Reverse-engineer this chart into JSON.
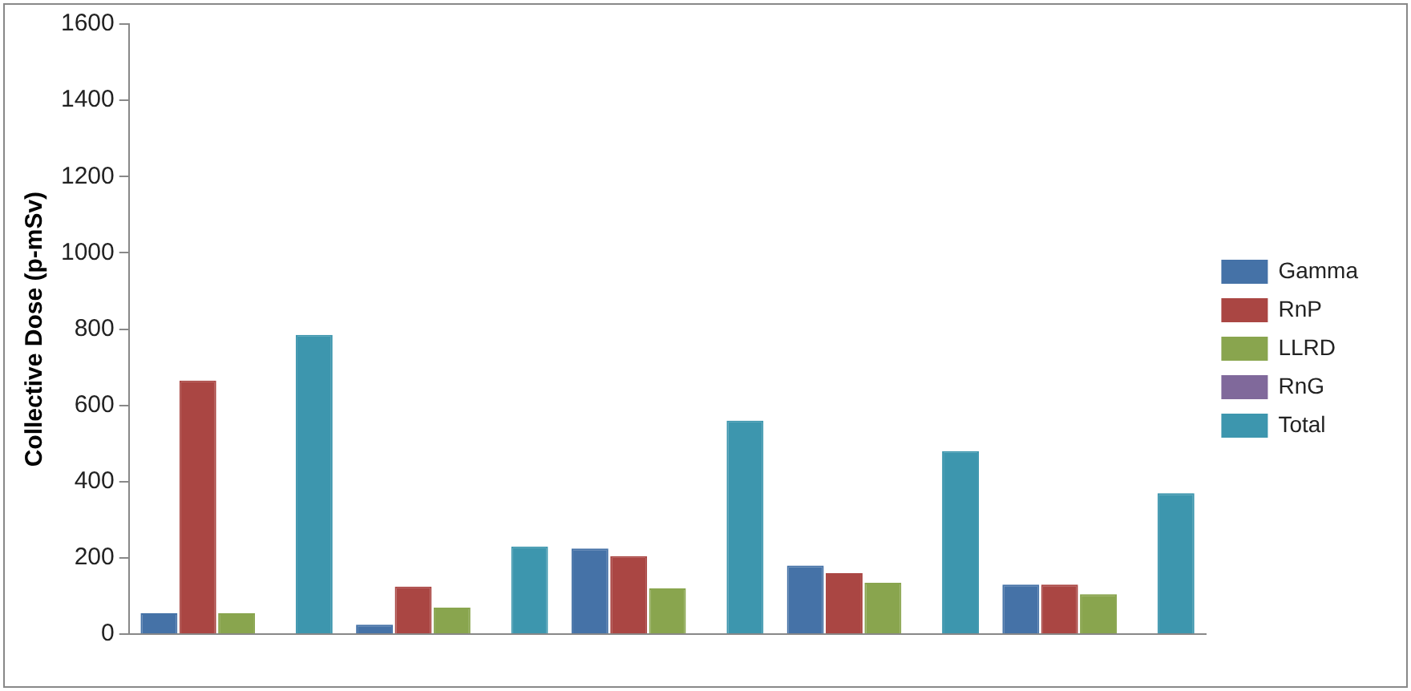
{
  "chart_data": {
    "type": "bar",
    "ylabel": "Collective Dose (p-mSv)",
    "categories": [
      null,
      null,
      null,
      null,
      null
    ],
    "series": [
      {
        "name": "Gamma",
        "color": "#4572a7",
        "values": [
          55,
          25,
          225,
          180,
          130
        ]
      },
      {
        "name": "RnP",
        "color": "#aa4643",
        "values": [
          665,
          125,
          205,
          160,
          130
        ]
      },
      {
        "name": "LLRD",
        "color": "#89a54e",
        "values": [
          55,
          70,
          120,
          135,
          105
        ]
      },
      {
        "name": "RnG",
        "color": "#80699b",
        "values": [
          0,
          0,
          0,
          0,
          0
        ]
      },
      {
        "name": "Total",
        "color": "#3d96ae",
        "values": [
          785,
          230,
          560,
          480,
          370
        ]
      }
    ],
    "ylim": [
      0,
      1600
    ],
    "yticks": [
      0,
      200,
      400,
      600,
      800,
      1000,
      1200,
      1400,
      1600
    ],
    "grid": false,
    "legend": "right"
  }
}
